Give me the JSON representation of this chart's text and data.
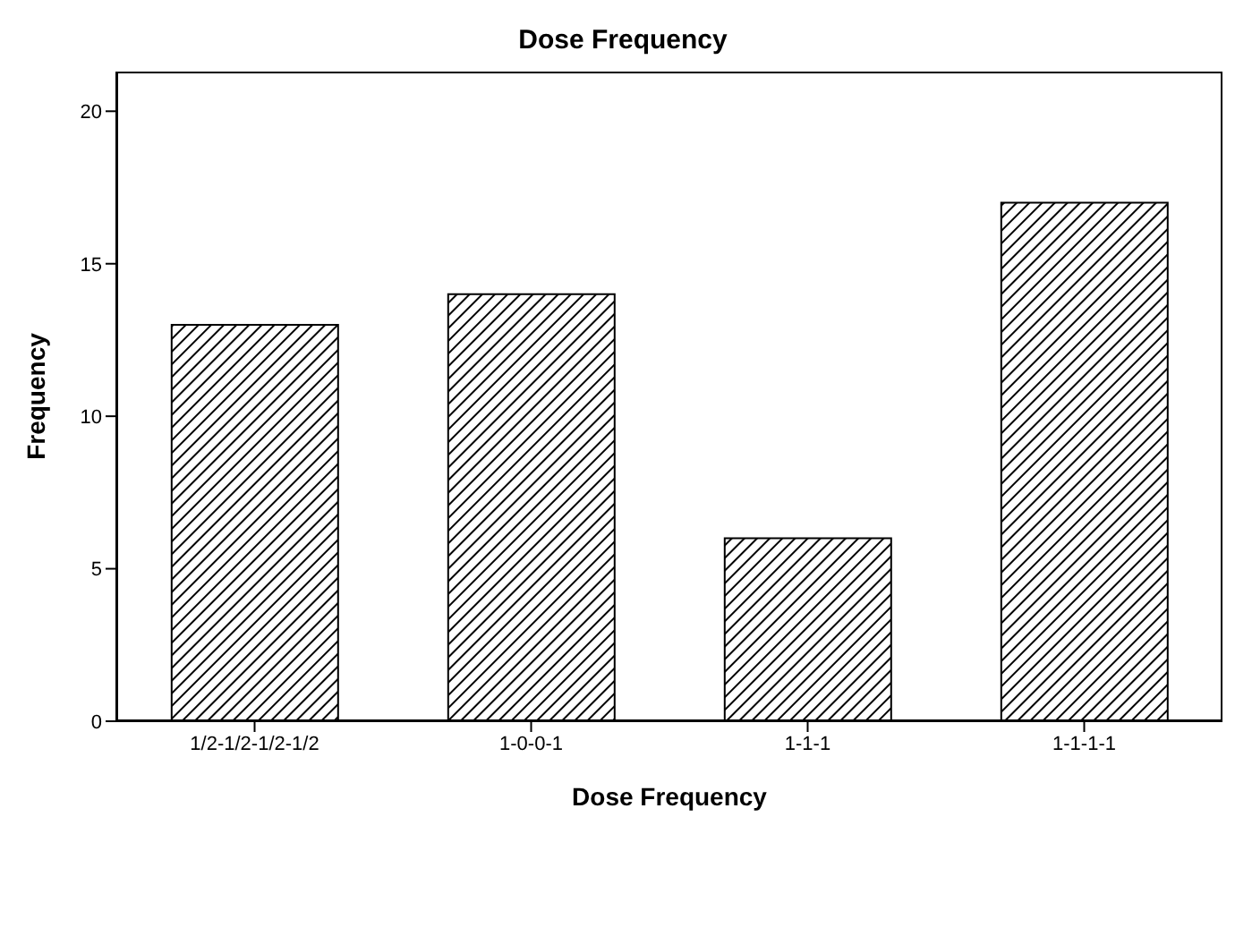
{
  "chart_data": {
    "type": "bar",
    "title": "Dose Frequency",
    "xlabel": "Dose Frequency",
    "ylabel": "Frequency",
    "categories": [
      "1/2-1/2-1/2-1/2",
      "1-0-0-1",
      "1-1-1",
      "1-1-1-1"
    ],
    "values": [
      13,
      14,
      6,
      17
    ],
    "color": "#000000",
    "ylim": [
      0,
      21.3
    ],
    "yticks": [
      0,
      5,
      10,
      15,
      20
    ],
    "grid": false,
    "legend": false
  }
}
